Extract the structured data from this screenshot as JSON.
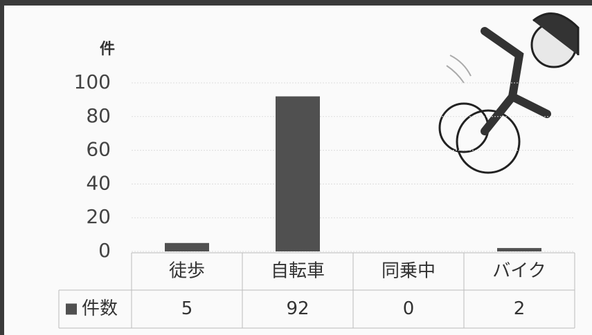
{
  "chart_data": {
    "type": "bar",
    "y_label": "件",
    "categories": [
      "徒歩",
      "自転車",
      "同乗中",
      "バイク"
    ],
    "series": [
      {
        "name": "件数",
        "color": "#505050",
        "values": [
          5,
          92,
          0,
          2
        ]
      }
    ],
    "ylim": [
      0,
      100
    ],
    "yticks": [
      0,
      20,
      40,
      60,
      80,
      100
    ],
    "grid": true
  }
}
